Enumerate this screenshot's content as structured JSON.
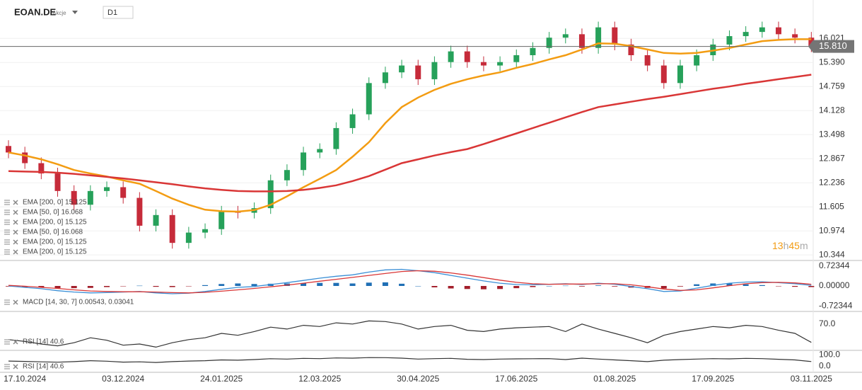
{
  "header": {
    "symbol": "EOAN.DE",
    "kind": "Akcje",
    "timeframe": "D1"
  },
  "chart_data": [
    {
      "type": "candlestick",
      "categories": [
        null,
        "17.10.2024",
        null,
        null,
        null,
        null,
        null,
        "03.12.2024",
        null,
        null,
        null,
        null,
        null,
        "24.01.2025",
        null,
        null,
        null,
        null,
        null,
        "12.03.2025",
        null,
        null,
        null,
        null,
        null,
        "30.04.2025",
        null,
        null,
        null,
        null,
        null,
        "17.06.2025",
        null,
        null,
        null,
        null,
        null,
        "01.08.2025",
        null,
        null,
        null,
        null,
        null,
        "17.09.2025",
        null,
        null,
        null,
        null,
        null,
        "03.11.2025"
      ],
      "open": [
        13.2,
        13.03,
        12.75,
        12.48,
        12.02,
        11.66,
        12.02,
        12.12,
        11.84,
        11.11,
        11.39,
        10.66,
        10.93,
        11.02,
        11.48,
        11.45,
        11.57,
        12.3,
        12.57,
        13.03,
        13.12,
        13.67,
        14.03,
        14.85,
        15.13,
        15.31,
        14.95,
        15.4,
        15.68,
        15.4,
        15.31,
        15.4,
        15.58,
        15.77,
        16.04,
        16.13,
        15.77,
        16.31,
        15.86,
        15.58,
        15.31,
        14.85,
        15.31,
        15.58,
        15.86,
        16.08,
        16.19,
        16.31,
        16.13,
        16.04
      ],
      "high": [
        13.35,
        13.18,
        12.9,
        12.63,
        12.17,
        12.17,
        12.27,
        12.27,
        11.99,
        11.54,
        11.54,
        11.08,
        11.17,
        11.63,
        11.63,
        11.72,
        12.45,
        12.72,
        13.18,
        13.27,
        13.82,
        14.18,
        15.0,
        15.28,
        15.46,
        15.46,
        15.55,
        15.83,
        15.83,
        15.55,
        15.55,
        15.73,
        15.92,
        16.19,
        16.28,
        16.28,
        16.46,
        16.46,
        16.01,
        15.73,
        15.46,
        15.46,
        15.73,
        16.01,
        16.23,
        16.34,
        16.46,
        16.46,
        16.28,
        16.19
      ],
      "low": [
        12.88,
        12.6,
        12.33,
        11.87,
        11.51,
        11.51,
        11.87,
        11.69,
        10.96,
        10.96,
        10.51,
        10.51,
        10.78,
        10.87,
        11.3,
        11.3,
        11.42,
        12.15,
        12.42,
        12.88,
        12.97,
        13.52,
        13.88,
        14.7,
        14.98,
        14.8,
        14.8,
        15.25,
        15.25,
        15.16,
        15.16,
        15.25,
        15.43,
        15.62,
        15.89,
        15.62,
        15.62,
        15.71,
        15.43,
        15.16,
        14.7,
        14.7,
        15.16,
        15.43,
        15.71,
        15.93,
        16.04,
        15.98,
        15.89,
        15.66
      ],
      "close": [
        13.03,
        12.75,
        12.48,
        12.02,
        11.66,
        12.02,
        12.12,
        11.84,
        11.11,
        11.39,
        10.66,
        10.93,
        11.02,
        11.48,
        11.45,
        11.57,
        12.3,
        12.57,
        13.03,
        13.12,
        13.67,
        14.03,
        14.85,
        15.13,
        15.31,
        14.95,
        15.4,
        15.68,
        15.4,
        15.31,
        15.4,
        15.58,
        15.77,
        16.04,
        16.13,
        15.77,
        16.31,
        15.86,
        15.58,
        15.31,
        14.85,
        15.31,
        15.58,
        15.86,
        16.08,
        16.19,
        16.31,
        16.13,
        16.04,
        15.81
      ],
      "up_color": "#26a15a",
      "down_color": "#c62b3a",
      "overlays": [
        {
          "color": "#f39c12",
          "values": [
            13.03,
            12.95,
            12.85,
            12.72,
            12.57,
            12.48,
            12.4,
            12.3,
            12.21,
            12.02,
            11.82,
            11.66,
            11.53,
            11.49,
            11.48,
            11.52,
            11.66,
            11.88,
            12.12,
            12.34,
            12.57,
            12.92,
            13.3,
            13.8,
            14.22,
            14.47,
            14.67,
            14.83,
            14.95,
            15.05,
            15.13,
            15.25,
            15.35,
            15.47,
            15.58,
            15.73,
            15.89,
            15.88,
            15.82,
            15.73,
            15.64,
            15.62,
            15.64,
            15.7,
            15.77,
            15.86,
            15.95,
            15.98,
            16.0,
            16.0
          ]
        },
        {
          "color": "#d93636",
          "values": [
            12.54,
            12.53,
            12.52,
            12.5,
            12.47,
            12.43,
            12.39,
            12.35,
            12.3,
            12.25,
            12.2,
            12.14,
            12.09,
            12.05,
            12.02,
            12.01,
            12.01,
            12.02,
            12.05,
            12.1,
            12.17,
            12.28,
            12.41,
            12.58,
            12.75,
            12.85,
            12.95,
            13.04,
            13.12,
            13.25,
            13.39,
            13.53,
            13.67,
            13.81,
            13.95,
            14.09,
            14.22,
            14.29,
            14.36,
            14.43,
            14.49,
            14.56,
            14.63,
            14.7,
            14.76,
            14.83,
            14.89,
            14.95,
            15.01,
            15.07
          ]
        }
      ],
      "indicator_labels": [
        "EMA [200,  0]  15.125",
        "EMA [50,  0]  16.068",
        "EMA [200,  0]  15.125",
        "EMA [50,  0]  16.068",
        "EMA [200,  0]  15.125",
        "EMA [200,  0]  15.125"
      ],
      "current_price": {
        "value": 15.81,
        "label": "15.810"
      },
      "countdown": [
        "13",
        "h",
        "45",
        "m"
      ],
      "ylim": [
        10.236,
        16.953
      ],
      "yticks": [
        16.021,
        {
          "value": 15.39,
          "label": "15.390"
        },
        14.759,
        14.128,
        13.498,
        12.867,
        12.236,
        11.605,
        10.974,
        10.344
      ],
      "grid": true
    },
    {
      "type": "macd",
      "series": [
        {
          "color": "#3b8fd6",
          "values": [
            0,
            -0.05,
            -0.1,
            -0.17,
            -0.22,
            -0.25,
            -0.24,
            -0.22,
            -0.2,
            -0.25,
            -0.28,
            -0.26,
            -0.2,
            -0.12,
            -0.05,
            -0.02,
            0.05,
            0.12,
            0.2,
            0.28,
            0.35,
            0.4,
            0.5,
            0.58,
            0.6,
            0.55,
            0.48,
            0.38,
            0.28,
            0.18,
            0.1,
            0.05,
            0.04,
            0.06,
            0.08,
            0.05,
            0.1,
            0.06,
            -0.02,
            -0.1,
            -0.2,
            -0.18,
            -0.08,
            0.02,
            0.1,
            0.14,
            0.15,
            0.12,
            0.08,
            0.02
          ]
        },
        {
          "color": "#d93636",
          "values": [
            0.02,
            -0.01,
            -0.05,
            -0.09,
            -0.14,
            -0.18,
            -0.2,
            -0.21,
            -0.21,
            -0.22,
            -0.24,
            -0.25,
            -0.23,
            -0.19,
            -0.14,
            -0.09,
            -0.03,
            0.03,
            0.1,
            0.17,
            0.24,
            0.31,
            0.38,
            0.45,
            0.52,
            0.55,
            0.53,
            0.47,
            0.39,
            0.3,
            0.21,
            0.13,
            0.08,
            0.06,
            0.07,
            0.07,
            0.08,
            0.08,
            0.04,
            -0.03,
            -0.11,
            -0.16,
            -0.14,
            -0.07,
            0.01,
            0.08,
            0.12,
            0.13,
            0.11,
            0.06
          ]
        }
      ],
      "histogram": [
        -0.02,
        -0.04,
        -0.05,
        -0.08,
        -0.08,
        -0.07,
        -0.04,
        -0.01,
        0.01,
        -0.03,
        -0.04,
        -0.01,
        0.03,
        0.07,
        0.09,
        0.07,
        0.08,
        0.09,
        0.1,
        0.11,
        0.11,
        0.09,
        0.12,
        0.13,
        0.08,
        0.0,
        -0.05,
        -0.09,
        -0.11,
        -0.12,
        -0.11,
        -0.08,
        -0.04,
        0.0,
        0.01,
        -0.02,
        0.02,
        -0.02,
        -0.06,
        -0.07,
        -0.09,
        -0.02,
        0.06,
        0.09,
        0.09,
        0.06,
        0.03,
        -0.01,
        -0.03,
        -0.04
      ],
      "histogram_colors": [
        "#1f6fb5",
        "#a31f2b"
      ],
      "label": "MACD [14, 30, 7]  0.00543,  0.03041",
      "ylim": [
        -0.868,
        0.868
      ],
      "yticks": [
        0.72344,
        {
          "value": 0,
          "label": "0.00000"
        },
        -0.72344
      ]
    },
    {
      "type": "rsi",
      "series": [
        {
          "color": "#333333",
          "values": [
            45,
            42,
            38,
            35,
            40,
            48,
            44,
            36,
            38,
            33,
            40,
            45,
            48,
            55,
            52,
            58,
            65,
            62,
            68,
            66,
            72,
            70,
            75,
            74,
            70,
            62,
            66,
            68,
            60,
            58,
            62,
            64,
            65,
            66,
            58,
            70,
            62,
            55,
            48,
            40,
            52,
            58,
            62,
            66,
            64,
            68,
            66,
            60,
            55,
            40.6
          ]
        }
      ],
      "label": "RSI [14]  40.6",
      "ylim": [
        30,
        88
      ],
      "yticks": [
        {
          "value": 70,
          "label": "70.0"
        }
      ]
    },
    {
      "type": "rsi",
      "series": [
        {
          "color": "#333333",
          "values": [
            45,
            42,
            38,
            35,
            40,
            48,
            44,
            36,
            38,
            33,
            40,
            45,
            48,
            55,
            52,
            58,
            65,
            62,
            68,
            66,
            72,
            70,
            75,
            74,
            70,
            62,
            66,
            68,
            60,
            58,
            62,
            64,
            65,
            66,
            58,
            70,
            62,
            55,
            48,
            40,
            52,
            58,
            62,
            66,
            64,
            68,
            66,
            60,
            55,
            40.6
          ]
        }
      ],
      "label": "RSI [14]  40.6",
      "ylim": [
        -40,
        125
      ],
      "yticks": [
        {
          "value": 100,
          "label": "100.0"
        },
        {
          "value": 0,
          "label": "0.0"
        }
      ]
    }
  ]
}
